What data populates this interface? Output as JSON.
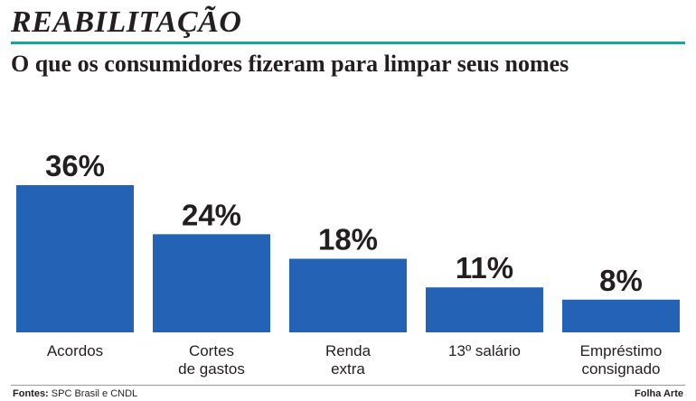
{
  "header": {
    "kicker": "REABILITAÇÃO",
    "title": "O que os consumidores fizeram para limpar seus nomes"
  },
  "footer": {
    "source_label": "Fontes:",
    "source_text": " SPC Brasil e CNDL",
    "credit": "Folha Arte"
  },
  "colors": {
    "bar": "#2362b4",
    "rule": "#1aa39a"
  },
  "chart_data": {
    "type": "bar",
    "title": "O que os consumidores fizeram para limpar seus nomes",
    "categories": [
      [
        "Acordos"
      ],
      [
        "Cortes",
        "de gastos"
      ],
      [
        "Renda",
        "extra"
      ],
      [
        "13º salário"
      ],
      [
        "Empréstimo",
        "consignado"
      ]
    ],
    "values": [
      36,
      24,
      18,
      11,
      8
    ],
    "value_labels": [
      "36%",
      "24%",
      "18%",
      "11%",
      "8%"
    ],
    "unit": "%",
    "ylim": [
      0,
      36
    ],
    "grid": false,
    "legend": "none"
  }
}
